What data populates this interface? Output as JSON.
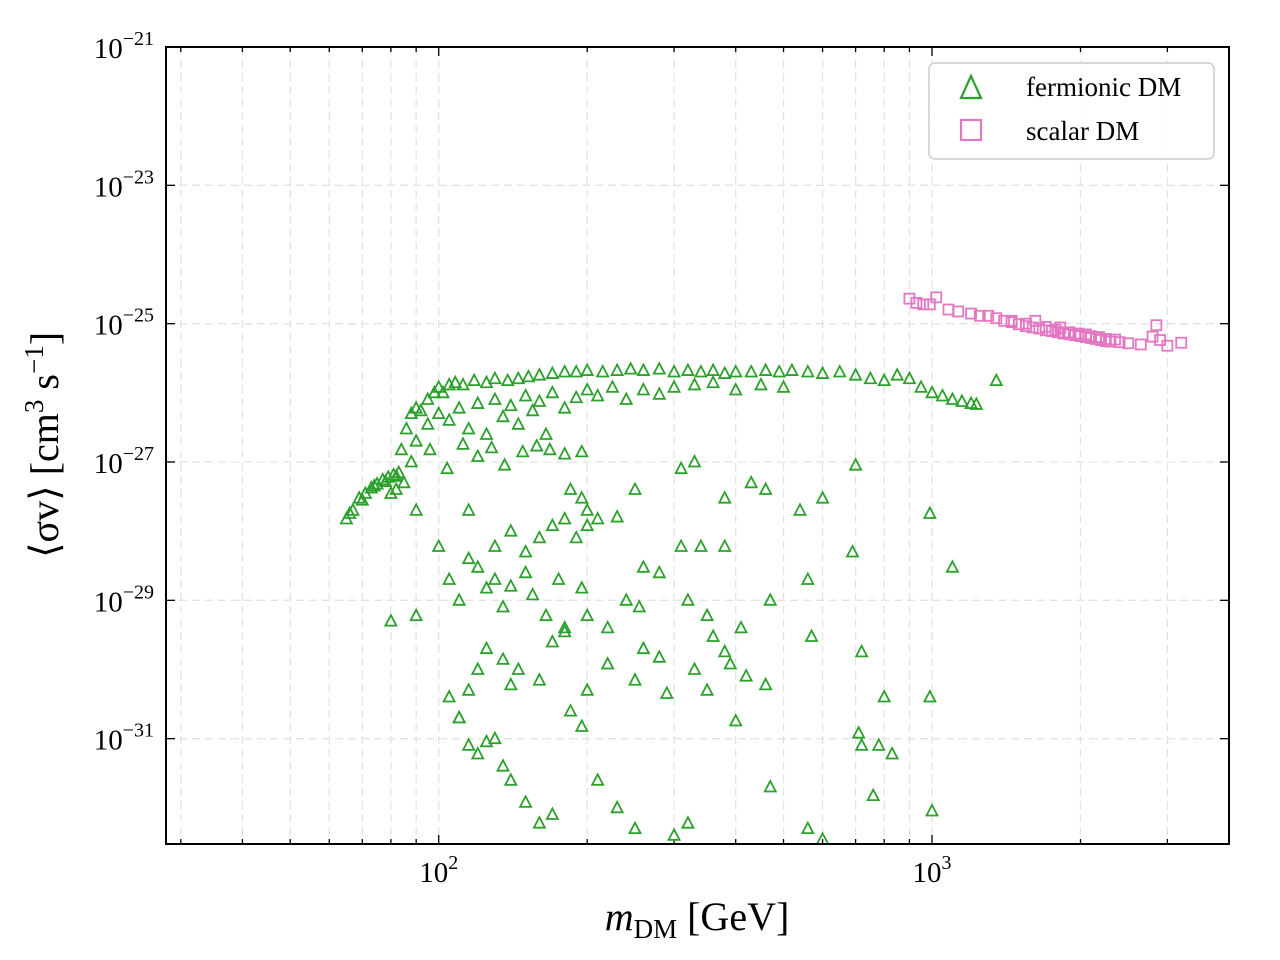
{
  "chart_data": {
    "type": "scatter",
    "xscale": "log",
    "yscale": "log",
    "xlim": [
      28,
      4000
    ],
    "ylim": [
      3e-33,
      1e-21
    ],
    "grid": true,
    "legend_position": "top-right",
    "xlabel": {
      "main": "m",
      "sub": "DM",
      "unit": " [GeV]"
    },
    "ylabel": {
      "main": "⟨σv⟩ [cm",
      "sup1": "3",
      "mid": " s",
      "sup2": "−1",
      "end": "]"
    },
    "x_ticks": [
      {
        "value": 100,
        "base": "10",
        "exp": "2"
      },
      {
        "value": 1000,
        "base": "10",
        "exp": "3"
      }
    ],
    "y_ticks": [
      {
        "value": 1e-21,
        "base": "10",
        "exp": "−21"
      },
      {
        "value": 1e-23,
        "base": "10",
        "exp": "−23"
      },
      {
        "value": 1e-25,
        "base": "10",
        "exp": "−25"
      },
      {
        "value": 1e-27,
        "base": "10",
        "exp": "−27"
      },
      {
        "value": 1e-29,
        "base": "10",
        "exp": "−29"
      },
      {
        "value": 1e-31,
        "base": "10",
        "exp": "−31"
      }
    ],
    "series": [
      {
        "name": "fermionic DM",
        "marker": "triangle",
        "color": "#2ca02c",
        "points": [
          [
            65,
            1.5e-28
          ],
          [
            67,
            2e-28
          ],
          [
            69,
            3e-28
          ],
          [
            71,
            3.5e-28
          ],
          [
            73,
            4.2e-28
          ],
          [
            75,
            4.8e-28
          ],
          [
            77,
            5.5e-28
          ],
          [
            79,
            6e-28
          ],
          [
            81,
            6.5e-28
          ],
          [
            83,
            7e-28
          ],
          [
            66,
            1.8e-28
          ],
          [
            70,
            2.8e-28
          ],
          [
            74,
            4.5e-28
          ],
          [
            78,
            5.2e-28
          ],
          [
            82,
            6.2e-28
          ],
          [
            84,
            1.5e-27
          ],
          [
            86,
            3e-27
          ],
          [
            88,
            5e-27
          ],
          [
            90,
            6e-27
          ],
          [
            92,
            5.5e-27
          ],
          [
            95,
            8e-27
          ],
          [
            98,
            1e-26
          ],
          [
            100,
            1.2e-26
          ],
          [
            102,
            1e-26
          ],
          [
            105,
            1.3e-26
          ],
          [
            108,
            1.4e-26
          ],
          [
            112,
            1.3e-26
          ],
          [
            118,
            1.5e-26
          ],
          [
            125,
            1.4e-26
          ],
          [
            130,
            1.6e-26
          ],
          [
            138,
            1.5e-26
          ],
          [
            145,
            1.6e-26
          ],
          [
            152,
            1.7e-26
          ],
          [
            160,
            1.8e-26
          ],
          [
            170,
            1.9e-26
          ],
          [
            180,
            2e-26
          ],
          [
            190,
            2e-26
          ],
          [
            200,
            2.1e-26
          ],
          [
            215,
            2e-26
          ],
          [
            230,
            2.1e-26
          ],
          [
            245,
            2.2e-26
          ],
          [
            260,
            2.1e-26
          ],
          [
            280,
            2.2e-26
          ],
          [
            300,
            2e-26
          ],
          [
            320,
            2.1e-26
          ],
          [
            340,
            2e-26
          ],
          [
            360,
            2.1e-26
          ],
          [
            380,
            1.9e-26
          ],
          [
            400,
            2e-26
          ],
          [
            430,
            2e-26
          ],
          [
            460,
            2.1e-26
          ],
          [
            490,
            2e-26
          ],
          [
            520,
            2.1e-26
          ],
          [
            560,
            2e-26
          ],
          [
            600,
            1.9e-26
          ],
          [
            650,
            2e-26
          ],
          [
            700,
            1.8e-26
          ],
          [
            750,
            1.6e-26
          ],
          [
            800,
            1.5e-26
          ],
          [
            850,
            1.8e-26
          ],
          [
            900,
            1.6e-26
          ],
          [
            950,
            1.2e-26
          ],
          [
            1000,
            1e-26
          ],
          [
            1050,
            9e-27
          ],
          [
            1100,
            8e-27
          ],
          [
            1150,
            7.5e-27
          ],
          [
            1200,
            7e-27
          ],
          [
            1230,
            6.8e-27
          ],
          [
            90,
            2e-27
          ],
          [
            95,
            3.5e-27
          ],
          [
            100,
            5e-27
          ],
          [
            105,
            4e-27
          ],
          [
            110,
            6e-27
          ],
          [
            115,
            3e-27
          ],
          [
            120,
            7e-27
          ],
          [
            125,
            2.5e-27
          ],
          [
            130,
            8e-27
          ],
          [
            135,
            4.5e-27
          ],
          [
            140,
            6.5e-27
          ],
          [
            145,
            3.5e-27
          ],
          [
            150,
            9e-27
          ],
          [
            155,
            5.5e-27
          ],
          [
            160,
            7.5e-27
          ],
          [
            165,
            2.5e-27
          ],
          [
            170,
            1e-26
          ],
          [
            180,
            6e-27
          ],
          [
            190,
            8.5e-27
          ],
          [
            200,
            1.1e-26
          ],
          [
            210,
            9e-27
          ],
          [
            225,
            1.2e-26
          ],
          [
            240,
            8e-27
          ],
          [
            260,
            1.1e-26
          ],
          [
            280,
            9.5e-27
          ],
          [
            300,
            1.2e-26
          ],
          [
            330,
            1.3e-26
          ],
          [
            360,
            1.4e-26
          ],
          [
            400,
            1.1e-26
          ],
          [
            450,
            1.3e-26
          ],
          [
            500,
            1.2e-26
          ],
          [
            88,
            1e-27
          ],
          [
            96,
            1.5e-27
          ],
          [
            104,
            8e-28
          ],
          [
            112,
            1.8e-27
          ],
          [
            120,
            1.2e-27
          ],
          [
            128,
            1.6e-27
          ],
          [
            136,
            9e-28
          ],
          [
            148,
            1.4e-27
          ],
          [
            158,
            1.7e-27
          ],
          [
            168,
            1.5e-27
          ],
          [
            180,
            1.3e-27
          ],
          [
            195,
            1.4e-27
          ],
          [
            80,
            3.5e-28
          ],
          [
            82,
            4e-28
          ],
          [
            85,
            5e-28
          ],
          [
            90,
            2e-28
          ],
          [
            115,
            2e-28
          ],
          [
            185,
            4e-28
          ],
          [
            195,
            3e-28
          ],
          [
            200,
            2e-28
          ],
          [
            210,
            1.5e-28
          ],
          [
            250,
            4e-28
          ],
          [
            310,
            8e-28
          ],
          [
            330,
            1e-27
          ],
          [
            380,
            3e-28
          ],
          [
            430,
            5e-28
          ],
          [
            460,
            4e-28
          ],
          [
            540,
            2e-28
          ],
          [
            600,
            3e-28
          ],
          [
            700,
            9e-28
          ],
          [
            100,
            6e-29
          ],
          [
            115,
            4e-29
          ],
          [
            120,
            3e-29
          ],
          [
            130,
            6e-29
          ],
          [
            140,
            1e-28
          ],
          [
            150,
            5e-29
          ],
          [
            160,
            8e-29
          ],
          [
            170,
            1.2e-28
          ],
          [
            180,
            1.5e-28
          ],
          [
            190,
            8e-29
          ],
          [
            200,
            1.2e-28
          ],
          [
            230,
            1.6e-28
          ],
          [
            260,
            3e-29
          ],
          [
            310,
            6e-29
          ],
          [
            340,
            6e-29
          ],
          [
            380,
            6e-29
          ],
          [
            560,
            2e-29
          ],
          [
            690,
            5e-29
          ],
          [
            990,
            1.8e-28
          ],
          [
            1100,
            3e-29
          ],
          [
            80,
            5e-30
          ],
          [
            90,
            6e-30
          ],
          [
            105,
            2e-29
          ],
          [
            110,
            1e-29
          ],
          [
            125,
            1.5e-29
          ],
          [
            130,
            2e-29
          ],
          [
            135,
            8e-30
          ],
          [
            140,
            1.6e-29
          ],
          [
            150,
            2.5e-29
          ],
          [
            155,
            1.2e-29
          ],
          [
            165,
            6e-30
          ],
          [
            175,
            2e-29
          ],
          [
            180,
            3.5e-30
          ],
          [
            195,
            1.5e-29
          ],
          [
            200,
            6e-30
          ],
          [
            220,
            4e-30
          ],
          [
            240,
            1e-29
          ],
          [
            255,
            8e-30
          ],
          [
            280,
            2.5e-29
          ],
          [
            320,
            1e-29
          ],
          [
            350,
            6e-30
          ],
          [
            380,
            1.8e-30
          ],
          [
            410,
            4e-30
          ],
          [
            470,
            1e-29
          ],
          [
            105,
            4e-31
          ],
          [
            110,
            2e-31
          ],
          [
            115,
            5e-31
          ],
          [
            120,
            1e-30
          ],
          [
            125,
            2e-30
          ],
          [
            135,
            1.4e-30
          ],
          [
            140,
            6e-31
          ],
          [
            145,
            1e-30
          ],
          [
            160,
            7e-31
          ],
          [
            170,
            2.5e-30
          ],
          [
            180,
            4e-30
          ],
          [
            200,
            5e-31
          ],
          [
            220,
            1.2e-30
          ],
          [
            250,
            7e-31
          ],
          [
            260,
            2e-30
          ],
          [
            280,
            1.5e-30
          ],
          [
            290,
            4.5e-31
          ],
          [
            330,
            1e-30
          ],
          [
            350,
            5e-31
          ],
          [
            360,
            3e-30
          ],
          [
            390,
            1.2e-30
          ],
          [
            420,
            8e-31
          ],
          [
            460,
            6e-31
          ],
          [
            570,
            3e-30
          ],
          [
            720,
            1.8e-30
          ],
          [
            800,
            4e-31
          ],
          [
            110,
            2e-31
          ],
          [
            115,
            8e-32
          ],
          [
            120,
            6e-32
          ],
          [
            125,
            9e-32
          ],
          [
            130,
            1e-31
          ],
          [
            135,
            4e-32
          ],
          [
            140,
            2.5e-32
          ],
          [
            150,
            1.2e-32
          ],
          [
            160,
            6e-33
          ],
          [
            170,
            8e-33
          ],
          [
            185,
            2.5e-31
          ],
          [
            195,
            1.5e-31
          ],
          [
            210,
            2.5e-32
          ],
          [
            230,
            1e-32
          ],
          [
            250,
            5e-33
          ],
          [
            300,
            4e-33
          ],
          [
            320,
            6e-33
          ],
          [
            400,
            1.8e-31
          ],
          [
            470,
            2e-32
          ],
          [
            560,
            5e-33
          ],
          [
            600,
            3.5e-33
          ],
          [
            710,
            1.2e-31
          ],
          [
            720,
            8e-32
          ],
          [
            760,
            1.5e-32
          ],
          [
            780,
            8e-32
          ],
          [
            830,
            6e-32
          ],
          [
            990,
            4e-31
          ],
          [
            1000,
            9e-33
          ],
          [
            1350,
            1.5e-26
          ]
        ]
      },
      {
        "name": "scalar DM",
        "marker": "square",
        "color": "#e377c2",
        "points": [
          [
            900,
            2.3e-25
          ],
          [
            930,
            2e-25
          ],
          [
            960,
            1.9e-25
          ],
          [
            990,
            1.9e-25
          ],
          [
            1020,
            2.4e-25
          ],
          [
            1080,
            1.6e-25
          ],
          [
            1130,
            1.5e-25
          ],
          [
            1200,
            1.4e-25
          ],
          [
            1250,
            1.3e-25
          ],
          [
            1300,
            1.3e-25
          ],
          [
            1350,
            1.2e-25
          ],
          [
            1400,
            1.1e-25
          ],
          [
            1450,
            1.05e-25
          ],
          [
            1500,
            9.8e-26
          ],
          [
            1550,
            9.2e-26
          ],
          [
            1600,
            8.8e-26
          ],
          [
            1650,
            8.5e-26
          ],
          [
            1700,
            8e-26
          ],
          [
            1750,
            7.8e-26
          ],
          [
            1800,
            7.5e-26
          ],
          [
            1850,
            7.2e-26
          ],
          [
            1900,
            7e-26
          ],
          [
            1950,
            6.8e-26
          ],
          [
            2000,
            6.6e-26
          ],
          [
            2050,
            6.4e-26
          ],
          [
            2100,
            6.2e-26
          ],
          [
            2150,
            6e-26
          ],
          [
            2200,
            5.8e-26
          ],
          [
            2250,
            5.6e-26
          ],
          [
            2300,
            5.5e-26
          ],
          [
            2400,
            5.4e-26
          ],
          [
            2500,
            5.2e-26
          ],
          [
            2650,
            5e-26
          ],
          [
            2800,
            6.5e-26
          ],
          [
            2850,
            9.5e-26
          ],
          [
            2900,
            5.8e-26
          ],
          [
            3000,
            4.8e-26
          ],
          [
            3200,
            5.3e-26
          ],
          [
            1450,
            1.1e-25
          ],
          [
            1550,
            1e-25
          ],
          [
            1620,
            1.1e-25
          ],
          [
            1700,
            9e-26
          ],
          [
            1780,
            8.2e-26
          ],
          [
            1820,
            8.8e-26
          ],
          [
            1900,
            7.5e-26
          ],
          [
            1980,
            7.2e-26
          ],
          [
            2050,
            7e-26
          ],
          [
            2100,
            6.6e-26
          ],
          [
            2180,
            6.4e-26
          ],
          [
            2250,
            6e-26
          ],
          [
            2350,
            5.9e-26
          ]
        ]
      }
    ]
  }
}
